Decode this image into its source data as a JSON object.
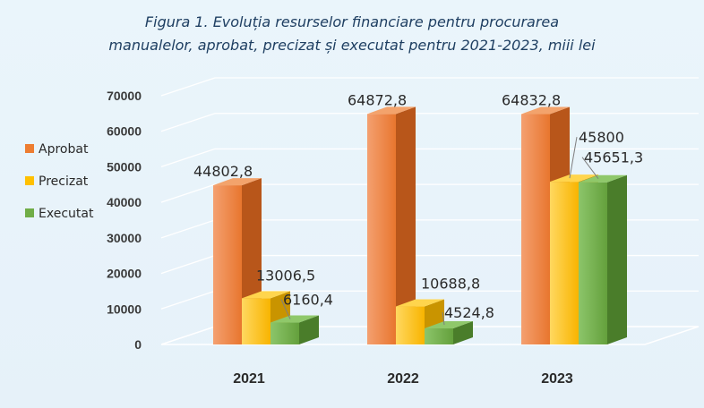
{
  "chart_data": {
    "type": "bar",
    "title_line1": "Figura 1. Evoluția resurselor financiare pentru procurarea",
    "title_line2": "manualelor, aprobat, precizat și executat pentru 2021-2023,  miii lei",
    "categories": [
      "2021",
      "2022",
      "2023"
    ],
    "series": [
      {
        "name": "Aprobat",
        "values": [
          44802.8,
          64872.8,
          64832.8
        ],
        "labels": [
          "44802,8",
          "64872,8",
          "64832,8"
        ],
        "color": "#ed7d31"
      },
      {
        "name": "Precizat",
        "values": [
          13006.5,
          10688.8,
          45800
        ],
        "labels": [
          "13006,5",
          "10688,8",
          "45800"
        ],
        "color": "#ffc000"
      },
      {
        "name": "Executat",
        "values": [
          6160.4,
          4524.8,
          45651.3
        ],
        "labels": [
          "6160,4",
          "4524,8",
          "45651,3"
        ],
        "color": "#70ad47"
      }
    ],
    "ylim": [
      0,
      70000
    ],
    "yticks": [
      "0",
      "10000",
      "20000",
      "30000",
      "40000",
      "50000",
      "60000",
      "70000"
    ],
    "grid": true,
    "legend_position": "left"
  }
}
